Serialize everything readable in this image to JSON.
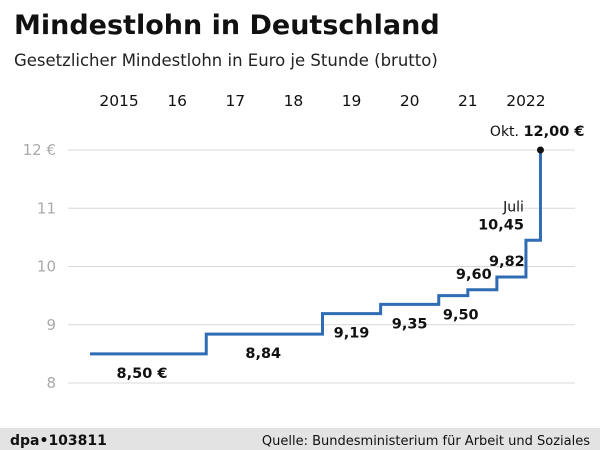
{
  "title": "Mindestlohn in Deutschland",
  "subtitle": "Gesetzlicher Mindestlohn in Euro je Stunde (brutto)",
  "footer": {
    "id": "dpa•103811",
    "source": "Quelle: Bundesministerium für Arbeit und Soziales"
  },
  "colors": {
    "line": "#2e6db4",
    "grid": "#d8d8d8",
    "footer_bg": "#e3e3e3"
  },
  "chart_data": {
    "type": "line",
    "step": true,
    "x_ticks": [
      "2015",
      "16",
      "17",
      "18",
      "19",
      "20",
      "21",
      "2022"
    ],
    "y_ticks": [
      "8",
      "9",
      "10",
      "11",
      "12 €"
    ],
    "ylim": [
      8,
      12
    ],
    "xlim": [
      2015,
      2023
    ],
    "grid": true,
    "points": [
      {
        "x": 2015.0,
        "y": 8.5,
        "label": "8,50 €"
      },
      {
        "x": 2017.0,
        "y": 8.84,
        "label": "8,84"
      },
      {
        "x": 2019.0,
        "y": 9.19,
        "label": "9,19"
      },
      {
        "x": 2020.0,
        "y": 9.35,
        "label": "9,35"
      },
      {
        "x": 2021.0,
        "y": 9.5,
        "label": "9,50"
      },
      {
        "x": 2021.5,
        "y": 9.6,
        "label": "9,60"
      },
      {
        "x": 2022.0,
        "y": 9.82,
        "label": "9,82"
      },
      {
        "x": 2022.5,
        "y": 10.45,
        "label": "10,45",
        "note": "Juli"
      },
      {
        "x": 2022.75,
        "y": 12.0,
        "label": "12,00 €",
        "note": "Okt."
      }
    ]
  }
}
